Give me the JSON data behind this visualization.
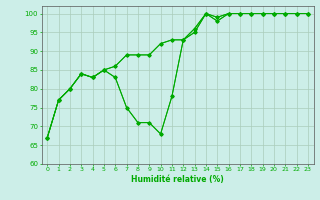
{
  "background_color": "#cceee8",
  "grid_color": "#aaccbb",
  "line_color": "#00aa00",
  "xlabel": "Humidité relative (%)",
  "xlim": [
    -0.5,
    23.5
  ],
  "ylim": [
    60,
    102
  ],
  "yticks": [
    60,
    65,
    70,
    75,
    80,
    85,
    90,
    95,
    100
  ],
  "xticks": [
    0,
    1,
    2,
    3,
    4,
    5,
    6,
    7,
    8,
    9,
    10,
    11,
    12,
    13,
    14,
    15,
    16,
    17,
    18,
    19,
    20,
    21,
    22,
    23
  ],
  "series": [
    {
      "x": [
        0,
        1,
        2,
        3,
        4,
        5,
        6,
        7,
        8,
        9,
        10,
        11,
        12,
        13,
        14,
        15,
        16,
        17,
        18,
        19,
        20,
        21,
        22,
        23
      ],
      "y": [
        67,
        77,
        80,
        84,
        83,
        85,
        83,
        75,
        71,
        71,
        68,
        78,
        93,
        96,
        100,
        98,
        100,
        100,
        100,
        100,
        100,
        100,
        100,
        100
      ]
    },
    {
      "x": [
        0,
        1,
        2,
        3,
        4,
        5,
        6,
        7,
        8,
        9,
        10,
        11,
        12,
        13,
        14,
        15,
        16,
        17,
        18,
        19,
        20,
        21,
        22,
        23
      ],
      "y": [
        67,
        77,
        80,
        84,
        83,
        85,
        83,
        75,
        71,
        71,
        68,
        78,
        93,
        96,
        100,
        98,
        100,
        100,
        100,
        100,
        100,
        100,
        100,
        100
      ]
    },
    {
      "x": [
        0,
        1,
        2,
        3,
        4,
        5,
        6,
        7,
        8,
        9,
        10,
        11,
        12,
        13,
        14,
        15,
        16,
        17,
        18,
        19,
        20,
        21,
        22,
        23
      ],
      "y": [
        67,
        77,
        80,
        84,
        83,
        85,
        86,
        89,
        89,
        89,
        92,
        93,
        93,
        95,
        100,
        99,
        100,
        100,
        100,
        100,
        100,
        100,
        100,
        100
      ]
    },
    {
      "x": [
        0,
        1,
        2,
        3,
        4,
        5,
        6,
        7,
        8,
        9,
        10,
        11,
        12,
        13,
        14,
        15,
        16,
        17,
        18,
        19,
        20,
        21,
        22,
        23
      ],
      "y": [
        67,
        77,
        80,
        84,
        83,
        85,
        86,
        89,
        89,
        89,
        92,
        93,
        93,
        95,
        100,
        99,
        100,
        100,
        100,
        100,
        100,
        100,
        100,
        100
      ]
    }
  ]
}
